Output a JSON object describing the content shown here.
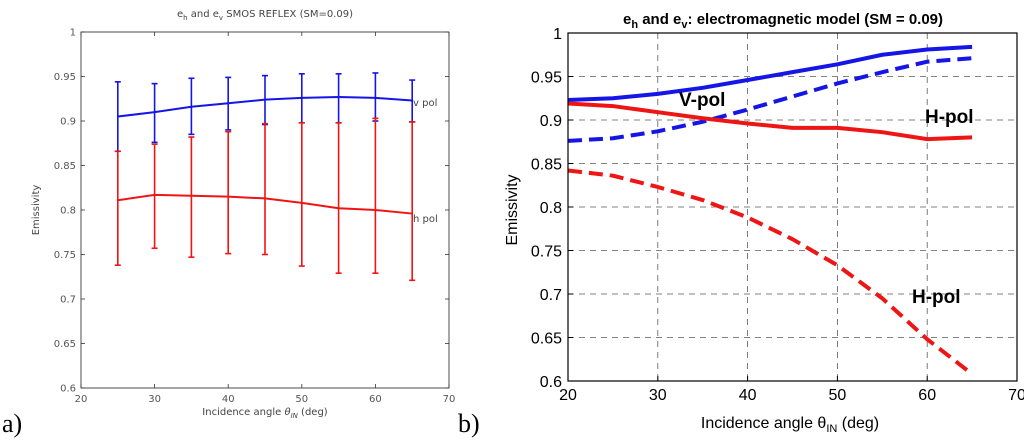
{
  "figure": {
    "label_a": "a)",
    "label_b": "b)"
  },
  "colors": {
    "v": "#1515e6",
    "h": "#ee1515",
    "axis": "#000000",
    "grid_b": "#5a5a5a"
  },
  "chart_data": [
    {
      "type": "line",
      "title": "e_h and e_v SMOS REFLEX (SM=0.09)",
      "title_parts": {
        "e1": "e",
        "s1": "h",
        "mid": " and e",
        "s2": "v",
        "rest": " SMOS REFLEX (SM=0.09)"
      },
      "xlabel": "Incidence angle θIN (deg)",
      "xlabel_parts": {
        "main": "Incidence angle ",
        "sym": "θ",
        "sub": "IN",
        "tail": " (deg)"
      },
      "ylabel": "Emissivity",
      "xlim": [
        20,
        70
      ],
      "ylim": [
        0.6,
        1.0
      ],
      "xticks": [
        "20",
        "30",
        "40",
        "50",
        "60",
        "70"
      ],
      "yticks": [
        "0.6",
        "0.65",
        "0.7",
        "0.75",
        "0.8",
        "0.85",
        "0.9",
        "0.95",
        "1"
      ],
      "grid": false,
      "x": [
        25,
        30,
        35,
        40,
        45,
        50,
        55,
        60,
        65
      ],
      "series": [
        {
          "name": "v pol",
          "label": "v pol",
          "values": [
            0.905,
            0.91,
            0.916,
            0.92,
            0.924,
            0.926,
            0.927,
            0.926,
            0.923
          ],
          "err_low": [
            0.866,
            0.876,
            0.885,
            0.89,
            0.896,
            0.898,
            0.898,
            0.9,
            0.899
          ],
          "err_high": [
            0.944,
            0.942,
            0.948,
            0.949,
            0.951,
            0.953,
            0.953,
            0.954,
            0.946
          ]
        },
        {
          "name": "h pol",
          "label": "h pol",
          "values": [
            0.811,
            0.817,
            0.816,
            0.815,
            0.813,
            0.808,
            0.802,
            0.8,
            0.796
          ],
          "err_low": [
            0.738,
            0.757,
            0.747,
            0.751,
            0.75,
            0.737,
            0.729,
            0.729,
            0.721
          ],
          "err_high": [
            0.866,
            0.874,
            0.882,
            0.888,
            0.897,
            0.898,
            0.898,
            0.903,
            0.899
          ]
        }
      ]
    },
    {
      "type": "line",
      "title": "e_h and e_v: electromagnetic model (SM = 0.09)",
      "title_parts": {
        "e1": "e",
        "s1": "h",
        "mid": " and e",
        "s2": "v",
        "rest": ": electromagnetic model (SM = 0.09)"
      },
      "xlabel": "Incidence angle θIN (deg)",
      "xlabel_parts": {
        "main": "Incidence angle ",
        "sym": "θ",
        "sub": "IN",
        "tail": " (deg)"
      },
      "ylabel": "Emissivity",
      "xlim": [
        20,
        70
      ],
      "ylim": [
        0.6,
        1.0
      ],
      "xticks": [
        "20",
        "30",
        "40",
        "50",
        "60",
        "70"
      ],
      "yticks": [
        "0.6",
        "0.65",
        "0.7",
        "0.75",
        "0.8",
        "0.85",
        "0.9",
        "0.95",
        "1"
      ],
      "grid": true,
      "annotations": [
        "V-pol",
        "H-pol",
        "H-pol"
      ],
      "series": [
        {
          "name": "V-pol solid",
          "style": "solid",
          "pol": "v",
          "x": [
            20,
            25,
            30,
            35,
            40,
            45,
            50,
            55,
            60,
            65
          ],
          "values": [
            0.923,
            0.925,
            0.93,
            0.937,
            0.946,
            0.955,
            0.964,
            0.975,
            0.981,
            0.984
          ]
        },
        {
          "name": "V-pol dashed",
          "style": "dashed",
          "pol": "v",
          "x": [
            20,
            25,
            30,
            35,
            40,
            45,
            50,
            55,
            60,
            65
          ],
          "values": [
            0.876,
            0.879,
            0.887,
            0.898,
            0.912,
            0.927,
            0.942,
            0.955,
            0.967,
            0.971
          ]
        },
        {
          "name": "H-pol solid",
          "style": "solid",
          "pol": "h",
          "x": [
            20,
            25,
            30,
            35,
            40,
            45,
            50,
            55,
            60,
            65
          ],
          "values": [
            0.919,
            0.916,
            0.909,
            0.902,
            0.896,
            0.891,
            0.891,
            0.886,
            0.878,
            0.88
          ]
        },
        {
          "name": "H-pol dashed",
          "style": "dashed",
          "pol": "h",
          "x": [
            20,
            25,
            30,
            35,
            40,
            45,
            50,
            55,
            60,
            65
          ],
          "values": [
            0.842,
            0.836,
            0.823,
            0.808,
            0.788,
            0.763,
            0.733,
            0.695,
            0.648,
            0.608
          ]
        }
      ]
    }
  ]
}
